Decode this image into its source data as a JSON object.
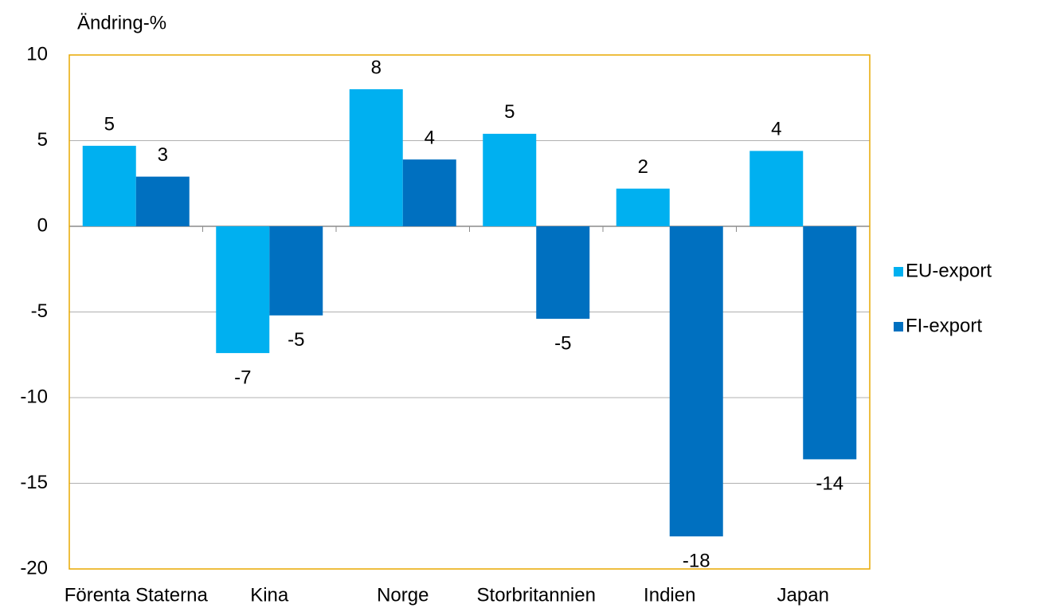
{
  "chart_data": {
    "type": "bar",
    "y_axis_label": "Ändring-%",
    "categories": [
      "Förenta Staterna",
      "Kina",
      "Norge",
      "Storbritannien",
      "Indien",
      "Japan"
    ],
    "series": [
      {
        "name": "EU-export",
        "color": "#00b0f0",
        "values": [
          4.7,
          -7.4,
          8.0,
          5.4,
          2.2,
          4.4
        ],
        "value_labels": [
          "5",
          "-7",
          "8",
          "5",
          "2",
          "4"
        ]
      },
      {
        "name": "FI-export",
        "color": "#0070c0",
        "values": [
          2.9,
          -5.2,
          3.9,
          -5.4,
          -18.1,
          -13.6
        ],
        "value_labels": [
          "3",
          "-5",
          "4",
          "-5",
          "-18",
          "-14"
        ]
      }
    ],
    "ylim": [
      -20,
      10
    ],
    "yticks": [
      -20,
      -15,
      -10,
      -5,
      0,
      5,
      10
    ],
    "grid": true,
    "legend": "right"
  }
}
